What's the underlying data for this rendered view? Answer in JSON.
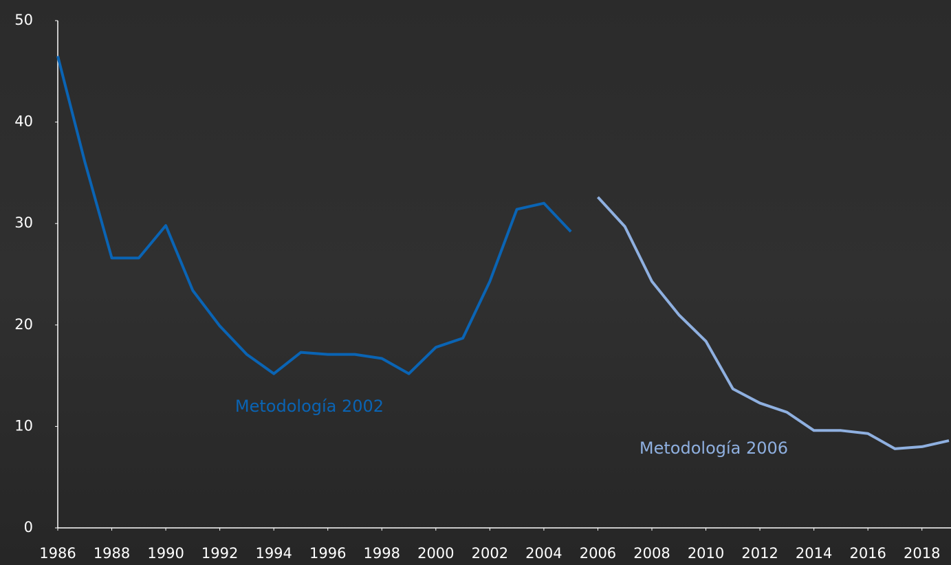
{
  "chart_data": {
    "type": "line",
    "series": [
      {
        "name": "Metodología 2002",
        "color": "#0a64b4",
        "x": [
          1986,
          1987,
          1988,
          1989,
          1990,
          1991,
          1992,
          1993,
          1994,
          1995,
          1996,
          1997,
          1998,
          1999,
          2000,
          2001,
          2002,
          2003,
          2004,
          2005
        ],
        "values": [
          46.5,
          36.1,
          26.6,
          26.6,
          29.8,
          23.4,
          19.9,
          17.1,
          15.2,
          17.3,
          17.1,
          17.1,
          16.7,
          15.2,
          17.8,
          18.7,
          24.3,
          31.4,
          32.0,
          29.2
        ]
      },
      {
        "name": "Metodología 2006",
        "color": "#8fb0e0",
        "x": [
          2006,
          2007,
          2008,
          2009,
          2010,
          2011,
          2012,
          2013,
          2014,
          2015,
          2016,
          2017,
          2018,
          2019
        ],
        "values": [
          32.6,
          29.7,
          24.3,
          21.0,
          18.4,
          13.7,
          12.3,
          11.4,
          9.6,
          9.6,
          9.3,
          7.8,
          8.0,
          8.6
        ]
      }
    ],
    "xlim": [
      1986,
      2019
    ],
    "xticks": [
      1986,
      1988,
      1990,
      1992,
      1994,
      1996,
      1998,
      2000,
      2002,
      2004,
      2006,
      2008,
      2010,
      2012,
      2014,
      2016,
      2018
    ],
    "ylim": [
      0,
      50
    ],
    "yticks": [
      0,
      10,
      20,
      30,
      40,
      50
    ]
  }
}
